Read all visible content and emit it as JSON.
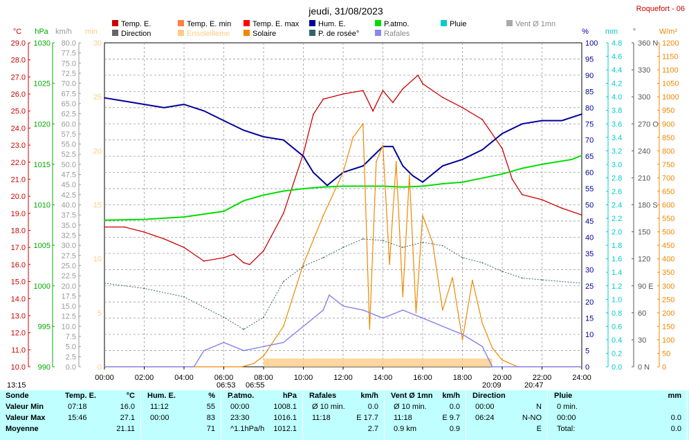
{
  "location": "Roquefort - 06",
  "date": "jeudi, 31/08/2023",
  "legend": [
    {
      "label": "Temp. E.",
      "color": "#cc0000"
    },
    {
      "label": "Temp. E. min",
      "color": "#ff8040"
    },
    {
      "label": "Temp. E. max",
      "color": "#ff0000"
    },
    {
      "label": "Hum. E.",
      "color": "#000099"
    },
    {
      "label": "P.atmo.",
      "color": "#00dd00"
    },
    {
      "label": "Pluie",
      "color": "#00cccc"
    },
    {
      "label": "Vent Ø 1mn",
      "color": "#aaaaaa"
    },
    {
      "label": "Direction",
      "color": "#666666"
    },
    {
      "label": "Ensoleilleme",
      "color": "#ffcc88"
    },
    {
      "label": "Solaire",
      "color": "#ee8800"
    },
    {
      "label": "P. de rosée°",
      "color": "#336666"
    },
    {
      "label": "Rafales",
      "color": "#8888ee"
    }
  ],
  "axes": {
    "temp": {
      "unit": "°C",
      "ticks": [
        "29.0",
        "28.0",
        "27.0",
        "26.0",
        "25.0",
        "24.0",
        "23.0",
        "22.0",
        "21.0",
        "20.0",
        "19.0",
        "18.0",
        "17.0",
        "16.0",
        "15.0",
        "14.0",
        "13.0",
        "12.0",
        "11.0",
        "10.0"
      ]
    },
    "press": {
      "unit": "hPa",
      "ticks": [
        "1030",
        "1025",
        "1020",
        "1015",
        "1010",
        "1005",
        "1000",
        "995",
        "990"
      ]
    },
    "wind": {
      "unit": "km/h",
      "ticks": [
        "80.0",
        "77.5",
        "75.0",
        "72.5",
        "70.0",
        "67.5",
        "65.0",
        "62.5",
        "60.0",
        "57.5",
        "55.0",
        "52.5",
        "50.0",
        "47.5",
        "45.0",
        "42.5",
        "40.0",
        "37.5",
        "35.0",
        "32.5",
        "30.0",
        "27.5",
        "25.0",
        "22.5",
        "20.0",
        "17.5",
        "15.0",
        "12.5",
        "10.0",
        "7.5",
        "5.0",
        "2.5",
        "0.0"
      ]
    },
    "min": {
      "unit": "min",
      "ticks": [
        "30",
        "25",
        "20",
        "15",
        "10",
        "5",
        "0"
      ]
    },
    "hum": {
      "unit": "%",
      "ticks": [
        "100",
        "95",
        "90",
        "85",
        "80",
        "75",
        "70",
        "65",
        "60",
        "55",
        "50",
        "45",
        "40",
        "35",
        "30",
        "25",
        "20",
        "15",
        "10",
        "5",
        "0"
      ]
    },
    "rain": {
      "unit": "mm",
      "ticks": [
        "4.8",
        "4.6",
        "4.4",
        "4.2",
        "4.0",
        "3.8",
        "3.6",
        "3.4",
        "3.2",
        "3.0",
        "2.8",
        "2.6",
        "2.4",
        "2.2",
        "2.0",
        "1.8",
        "1.6",
        "1.4",
        "1.2",
        "1.0",
        "0.8",
        "0.6",
        "0.4",
        "0.2",
        "0.0"
      ]
    },
    "dir": {
      "unit": "°",
      "ticks": [
        "360 N",
        "330",
        "300",
        "270 O",
        "240",
        "210",
        "180 S",
        "150",
        "120",
        "90 E",
        "60",
        "30",
        "0 N"
      ]
    },
    "solar": {
      "unit": "W/m²",
      "ticks": [
        "1200",
        "1150",
        "1100",
        "1050",
        "1000",
        "950",
        "900",
        "850",
        "800",
        "750",
        "700",
        "650",
        "600",
        "550",
        "500",
        "450",
        "400",
        "350",
        "300",
        "250",
        "200",
        "150",
        "100",
        "50",
        "0"
      ]
    },
    "time": [
      "00:00",
      "02:00",
      "04:00",
      "06:00",
      "08:00",
      "10:00",
      "12:00",
      "14:00",
      "16:00",
      "18:00",
      "20:00",
      "22:00",
      "24:00"
    ]
  },
  "sun_marks": {
    "sunrise_left": "13:15",
    "rise1": "06:53",
    "rise2": "06:55",
    "set1": "20:09",
    "set2": "20:47"
  },
  "chart_data": {
    "type": "line",
    "title": "jeudi, 31/08/2023",
    "x_range": [
      "00:00",
      "24:00"
    ],
    "series": [
      {
        "name": "Temp. E.",
        "unit": "°C",
        "x": [
          "00:00",
          "01:00",
          "02:00",
          "03:00",
          "04:00",
          "05:00",
          "06:00",
          "06:30",
          "07:00",
          "07:18",
          "08:00",
          "09:00",
          "10:00",
          "10:30",
          "11:00",
          "12:00",
          "13:00",
          "13:30",
          "14:00",
          "14:30",
          "15:00",
          "15:46",
          "16:00",
          "17:00",
          "18:00",
          "19:00",
          "20:00",
          "20:30",
          "21:00",
          "22:00",
          "23:00",
          "24:00"
        ],
        "y": [
          18.2,
          18.2,
          17.9,
          17.5,
          17.0,
          16.2,
          16.4,
          16.6,
          16.1,
          16.0,
          16.8,
          19.0,
          22.5,
          24.8,
          25.7,
          26.0,
          26.2,
          25.0,
          26.2,
          25.5,
          26.3,
          27.1,
          26.6,
          25.8,
          25.2,
          24.5,
          22.8,
          21.0,
          20.1,
          19.8,
          19.3,
          18.9
        ]
      },
      {
        "name": "Hum. E.",
        "unit": "%",
        "x": [
          "00:00",
          "01:00",
          "02:00",
          "03:00",
          "04:00",
          "05:00",
          "06:00",
          "07:00",
          "08:00",
          "09:00",
          "10:00",
          "10:30",
          "11:12",
          "12:00",
          "13:00",
          "14:00",
          "14:30",
          "15:00",
          "15:30",
          "16:00",
          "17:00",
          "18:00",
          "19:00",
          "20:00",
          "21:00",
          "22:00",
          "23:00",
          "24:00"
        ],
        "y": [
          83,
          82,
          81,
          80,
          81,
          79,
          76,
          73,
          71,
          70,
          65,
          60,
          56,
          60,
          62,
          68,
          68,
          62,
          59,
          57,
          62,
          64,
          67,
          72,
          75,
          76,
          76,
          78
        ]
      },
      {
        "name": "P.atmo.",
        "unit": "hPa",
        "x": [
          "00:00",
          "02:00",
          "04:00",
          "06:00",
          "07:00",
          "08:00",
          "09:00",
          "10:00",
          "11:00",
          "12:00",
          "13:00",
          "14:00",
          "15:00",
          "16:00",
          "17:00",
          "18:00",
          "19:00",
          "20:00",
          "21:00",
          "22:00",
          "23:30",
          "24:00"
        ],
        "y": [
          1008.1,
          1008.2,
          1008.5,
          1009.2,
          1010.5,
          1011.2,
          1011.7,
          1012.0,
          1012.2,
          1012.3,
          1012.3,
          1012.3,
          1012.2,
          1012.3,
          1012.6,
          1012.8,
          1013.3,
          1013.8,
          1014.5,
          1015.0,
          1015.6,
          1016.1
        ]
      },
      {
        "name": "Solaire",
        "unit": "W/m²",
        "x": [
          "00:00",
          "06:55",
          "07:30",
          "08:00",
          "09:00",
          "10:00",
          "11:00",
          "12:00",
          "12:30",
          "13:00",
          "13:20",
          "13:40",
          "14:00",
          "14:20",
          "14:40",
          "15:00",
          "15:20",
          "15:40",
          "16:00",
          "16:30",
          "17:00",
          "17:30",
          "18:00",
          "18:30",
          "19:00",
          "19:30",
          "20:00",
          "20:47",
          "24:00"
        ],
        "y": [
          0,
          0,
          12,
          40,
          150,
          380,
          560,
          720,
          850,
          900,
          140,
          760,
          820,
          380,
          760,
          260,
          710,
          200,
          560,
          460,
          210,
          330,
          100,
          320,
          160,
          70,
          25,
          0,
          0
        ]
      },
      {
        "name": "Rafales",
        "unit": "km/h",
        "x": [
          "00:00",
          "04:30",
          "05:00",
          "06:00",
          "07:00",
          "08:00",
          "09:00",
          "10:00",
          "11:00",
          "11:18",
          "12:00",
          "13:00",
          "14:00",
          "15:00",
          "16:00",
          "17:00",
          "18:00",
          "19:00",
          "19:30",
          "24:00"
        ],
        "y": [
          0,
          0,
          4,
          6,
          4,
          5,
          6,
          10,
          14,
          17.7,
          15,
          14,
          12,
          14,
          12,
          10,
          8,
          5,
          0,
          0
        ]
      },
      {
        "name": "P. de rosée°",
        "unit": "°C",
        "x": [
          "00:00",
          "02:00",
          "04:00",
          "06:00",
          "07:00",
          "08:00",
          "09:00",
          "10:00",
          "11:00",
          "12:00",
          "13:00",
          "14:00",
          "15:00",
          "16:00",
          "17:00",
          "18:00",
          "19:00",
          "20:00",
          "21:00",
          "22:00",
          "24:00"
        ],
        "y": [
          14.9,
          14.6,
          14.1,
          12.9,
          12.2,
          12.9,
          15.0,
          15.9,
          16.4,
          17.0,
          17.5,
          17.4,
          17.0,
          17.3,
          17.1,
          16.4,
          16.1,
          15.6,
          15.2,
          15.1,
          14.9
        ]
      }
    ]
  },
  "table": {
    "rows": [
      "Sonde",
      "Valeur Min",
      "Valeur Max",
      "Moyenne"
    ],
    "columns": [
      {
        "title": "Temp. E.",
        "unit": "°C",
        "cells": [
          [
            "07:18",
            "16.0"
          ],
          [
            "15:46",
            "27.1"
          ],
          [
            "",
            "21.11"
          ]
        ]
      },
      {
        "title": "Hum. E.",
        "unit": "%",
        "cells": [
          [
            "11:12",
            "55"
          ],
          [
            "00:00",
            "83"
          ],
          [
            "",
            "71"
          ]
        ]
      },
      {
        "title": "P.atmo.",
        "unit": "hPa",
        "cells": [
          [
            "00:00",
            "1008.1"
          ],
          [
            "23:30",
            "1016.1"
          ],
          [
            "^1.1hPa/h",
            "1012.1"
          ]
        ]
      },
      {
        "title": "Rafales",
        "unit": "km/h",
        "cells": [
          [
            "Ø 10 min.",
            "0.0"
          ],
          [
            "11:18",
            "E 17.7"
          ],
          [
            "",
            "2.7"
          ]
        ]
      },
      {
        "title": "Vent Ø 1mn",
        "unit": "km/h",
        "cells": [
          [
            "Ø 10 min.",
            "0.0"
          ],
          [
            "11:18",
            "E 9.7"
          ],
          [
            "0.9 km",
            "0.9"
          ]
        ]
      },
      {
        "title": "Direction",
        "unit": "",
        "cells": [
          [
            "00:00",
            "N"
          ],
          [
            "06:24",
            "N-NO"
          ],
          [
            "",
            "E"
          ]
        ]
      },
      {
        "title": "Pluie",
        "unit": "mm",
        "cells": [
          [
            "0 min.",
            ""
          ],
          [
            "00:00",
            "0.0"
          ],
          [
            "Total:",
            "0.0"
          ]
        ]
      }
    ]
  }
}
